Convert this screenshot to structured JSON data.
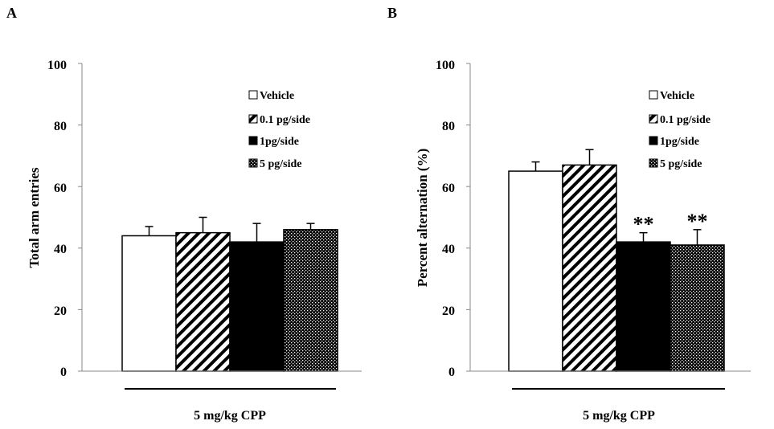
{
  "panel_a": {
    "letter": "A",
    "chart_data": {
      "type": "bar",
      "categories": [
        "Vehicle",
        "0.1 pg/side",
        "1pg/side",
        "5 pg/side"
      ],
      "values": [
        44,
        45,
        42,
        46
      ],
      "errors": [
        3,
        5,
        6,
        2
      ],
      "significance": [
        "",
        "",
        "",
        ""
      ],
      "ylabel": "Total arm entries",
      "xlabel": "5 mg/kg CPP",
      "ylim": [
        0,
        100
      ],
      "yticks": [
        "0",
        "20",
        "40",
        "60",
        "80",
        "100"
      ],
      "legend": [
        "Vehicle",
        "0.1 pg/side",
        "1pg/side",
        "5 pg/side"
      ],
      "legend_position": "top-right"
    }
  },
  "panel_b": {
    "letter": "B",
    "chart_data": {
      "type": "bar",
      "categories": [
        "Vehicle",
        "0.1 pg/side",
        "1pg/side",
        "5 pg/side"
      ],
      "values": [
        65,
        67,
        42,
        41
      ],
      "errors": [
        3,
        5,
        3,
        5
      ],
      "significance": [
        "",
        "",
        "**",
        "**"
      ],
      "ylabel": "Percent alternation (%)",
      "xlabel": "5 mg/kg CPP",
      "ylim": [
        0,
        100
      ],
      "yticks": [
        "0",
        "20",
        "40",
        "60",
        "80",
        "100"
      ],
      "legend": [
        "Vehicle",
        "0.1 pg/side",
        "1pg/side",
        "5 pg/side"
      ],
      "legend_position": "top-right"
    }
  }
}
